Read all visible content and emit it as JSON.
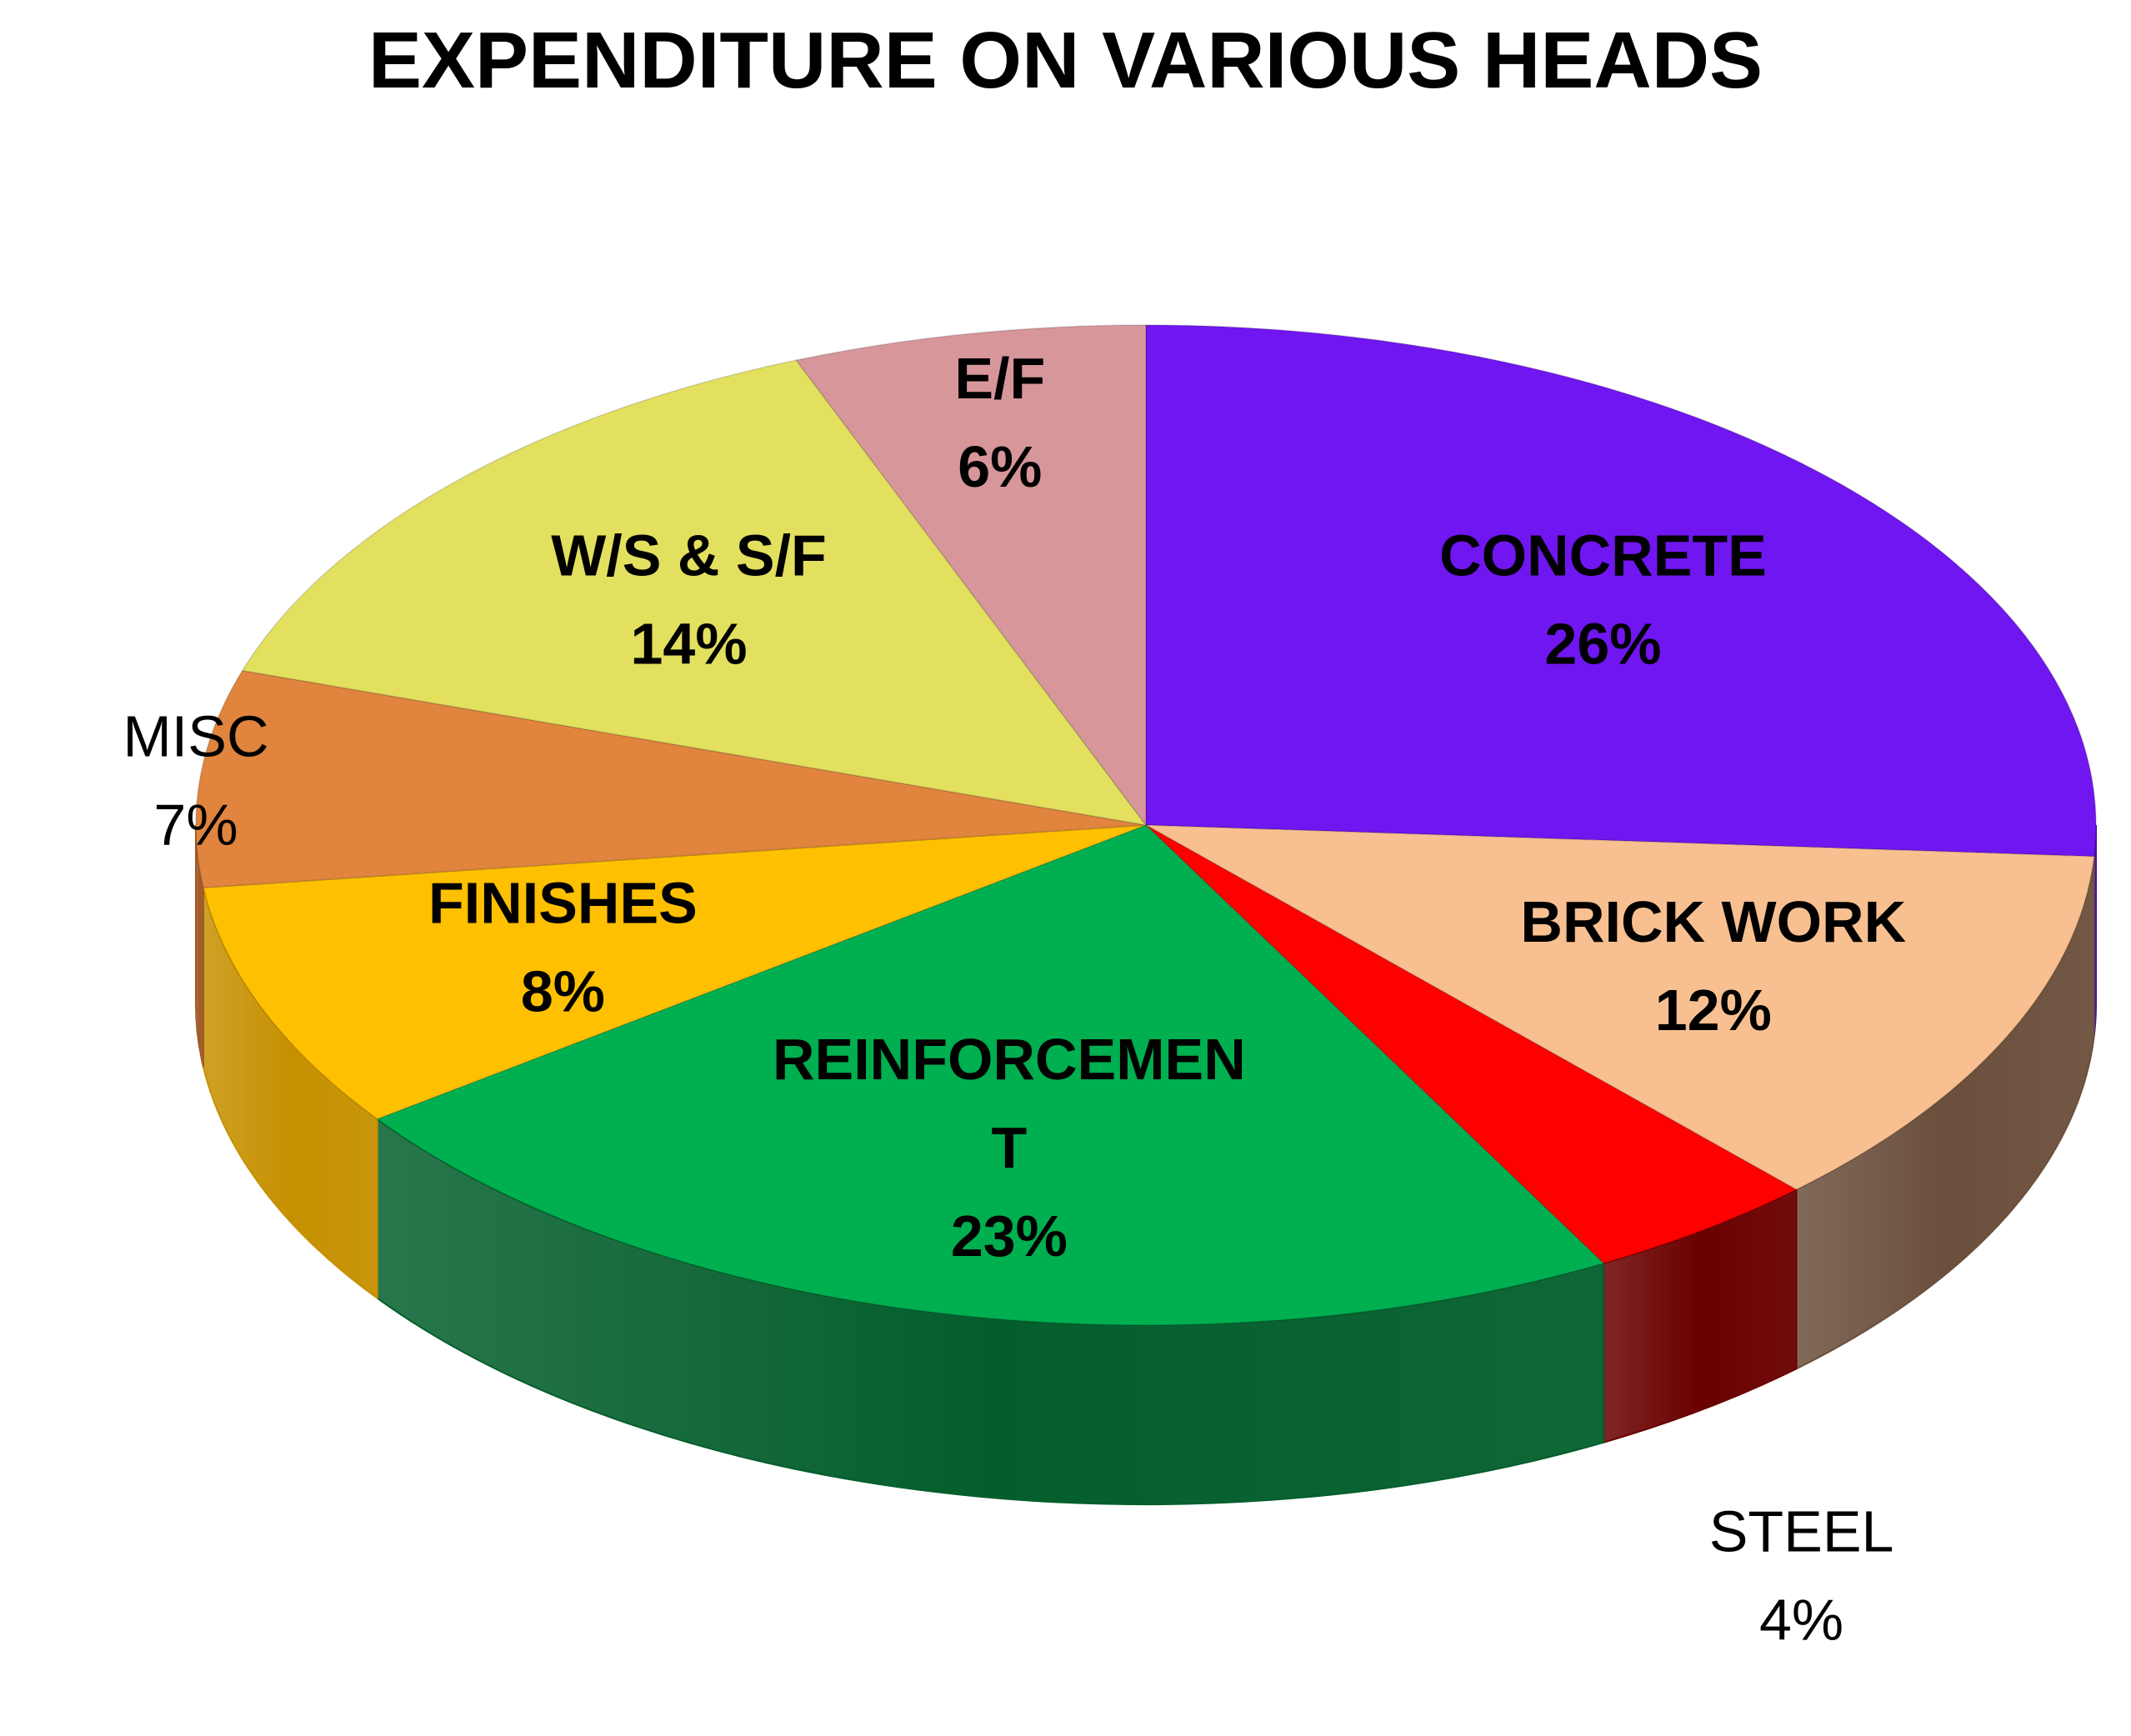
{
  "chart_data": {
    "type": "pie",
    "title": "EXPENDITURE ON VARIOUS HEADS",
    "three_d": true,
    "slices": [
      {
        "name": "CONCRETE",
        "label_lines": [
          "CONCRETE"
        ],
        "value": 26,
        "pct_label": "26%",
        "color": "#7016F0",
        "side_color": "#4a0fa0"
      },
      {
        "name": "BRICK WORK",
        "label_lines": [
          "BRICK WORK"
        ],
        "value": 12,
        "pct_label": "12%",
        "color": "#F8C091",
        "side_color": "#6b4f3c"
      },
      {
        "name": "STEEL",
        "label_lines": [
          "STEEL"
        ],
        "value": 4,
        "pct_label": "4%",
        "color": "#FE0000",
        "side_color": "#6a0000",
        "label_outside": true
      },
      {
        "name": "REINFORCEMENT",
        "label_lines": [
          "REINFORCEMEN",
          "T"
        ],
        "value": 23,
        "pct_label": "23%",
        "color": "#00AF50",
        "side_color": "#035e2c"
      },
      {
        "name": "FINISHES",
        "label_lines": [
          "FINISHES"
        ],
        "value": 8,
        "pct_label": "8%",
        "color": "#FEC000",
        "side_color": "#c69000"
      },
      {
        "name": "MISC",
        "label_lines": [
          "MISC"
        ],
        "value": 7,
        "pct_label": "7%",
        "color": "#E0843E",
        "side_color": "#a25a26",
        "label_outside": true
      },
      {
        "name": "W/S & S/F",
        "label_lines": [
          "W/S & S/F"
        ],
        "value": 14,
        "pct_label": "14%",
        "color": "#E2E05E",
        "side_color": "#a9a83c"
      },
      {
        "name": "E/F",
        "label_lines": [
          "E/F"
        ],
        "value": 6,
        "pct_label": "6%",
        "color": "#D6969A",
        "side_color": "#9c6468"
      }
    ]
  }
}
